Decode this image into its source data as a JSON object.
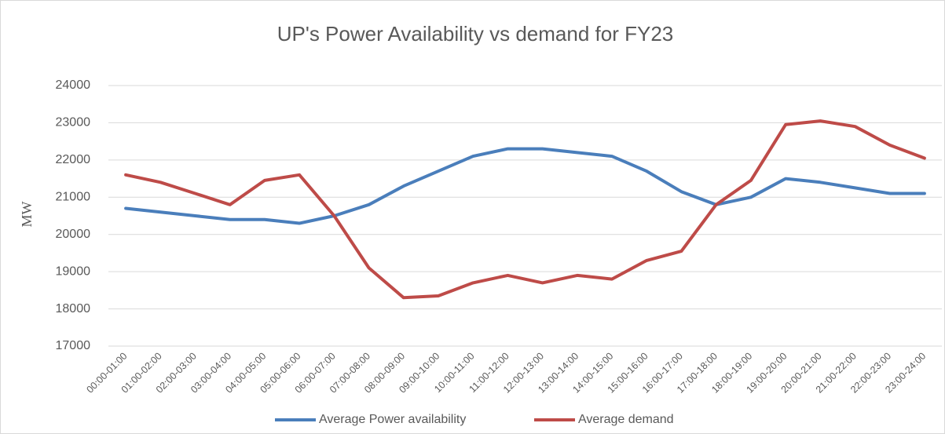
{
  "chart_data": {
    "type": "line",
    "title": "UP's Power Availability vs demand for FY23",
    "y_label": "MW",
    "categories": [
      "00:00-01:00",
      "01:00-02:00",
      "02:00-03:00",
      "03:00-04:00",
      "04:00-05:00",
      "05:00-06:00",
      "06:00-07:00",
      "07:00-08:00",
      "08:00-09:00",
      "09:00-10:00",
      "10:00-11:00",
      "11:00-12:00",
      "12:00-13:00",
      "13:00-14:00",
      "14:00-15:00",
      "15:00-16:00",
      "16:00-17:00",
      "17:00-18:00",
      "18:00-19:00",
      "19:00-20:00",
      "20:00-21:00",
      "21:00-22:00",
      "22:00-23:00",
      "23:00-24:00"
    ],
    "series": [
      {
        "name": "Average Power availability",
        "color": "#4a7ebb",
        "values": [
          20700,
          20600,
          20500,
          20400,
          20400,
          20300,
          20500,
          20800,
          21300,
          21700,
          22100,
          22300,
          22300,
          22200,
          22100,
          21700,
          21150,
          20800,
          21000,
          21500,
          21400,
          21250,
          21100,
          21100
        ]
      },
      {
        "name": "Average demand",
        "color": "#be4b48",
        "values": [
          21600,
          21400,
          21100,
          20800,
          21450,
          21600,
          20500,
          19100,
          18300,
          18350,
          18700,
          18900,
          18700,
          18900,
          18800,
          19300,
          19550,
          20800,
          21450,
          22950,
          23050,
          22900,
          22400,
          22050
        ]
      }
    ],
    "ylim": [
      17000,
      24000
    ],
    "yticks": [
      17000,
      18000,
      19000,
      20000,
      21000,
      22000,
      23000,
      24000
    ],
    "grid": true,
    "legend": "bottom"
  }
}
